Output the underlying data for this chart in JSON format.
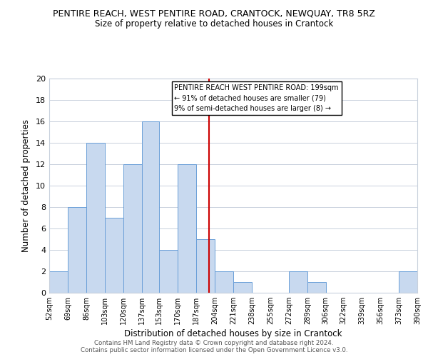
{
  "title": "PENTIRE REACH, WEST PENTIRE ROAD, CRANTOCK, NEWQUAY, TR8 5RZ",
  "subtitle": "Size of property relative to detached houses in Crantock",
  "xlabel": "Distribution of detached houses by size in Crantock",
  "ylabel": "Number of detached properties",
  "footer_line1": "Contains HM Land Registry data © Crown copyright and database right 2024.",
  "footer_line2": "Contains public sector information licensed under the Open Government Licence v3.0.",
  "bar_edges": [
    52,
    69,
    86,
    103,
    120,
    137,
    153,
    170,
    187,
    204,
    221,
    238,
    255,
    272,
    289,
    306,
    322,
    339,
    356,
    373,
    390
  ],
  "bar_heights": [
    2,
    8,
    14,
    7,
    12,
    16,
    4,
    12,
    5,
    2,
    1,
    0,
    0,
    2,
    1,
    0,
    0,
    0,
    0,
    2
  ],
  "bar_color": "#c8d9ef",
  "bar_edge_color": "#6a9fd8",
  "vline_x": 199,
  "vline_color": "#cc0000",
  "ylim": [
    0,
    20
  ],
  "yticks": [
    0,
    2,
    4,
    6,
    8,
    10,
    12,
    14,
    16,
    18,
    20
  ],
  "tick_labels": [
    "52sqm",
    "69sqm",
    "86sqm",
    "103sqm",
    "120sqm",
    "137sqm",
    "153sqm",
    "170sqm",
    "187sqm",
    "204sqm",
    "221sqm",
    "238sqm",
    "255sqm",
    "272sqm",
    "289sqm",
    "306sqm",
    "322sqm",
    "339sqm",
    "356sqm",
    "373sqm",
    "390sqm"
  ],
  "annotation_title": "PENTIRE REACH WEST PENTIRE ROAD: 199sqm",
  "annotation_line1": "← 91% of detached houses are smaller (79)",
  "annotation_line2": "9% of semi-detached houses are larger (8) →",
  "bg_color": "#ffffff",
  "grid_color": "#c8d0dc"
}
